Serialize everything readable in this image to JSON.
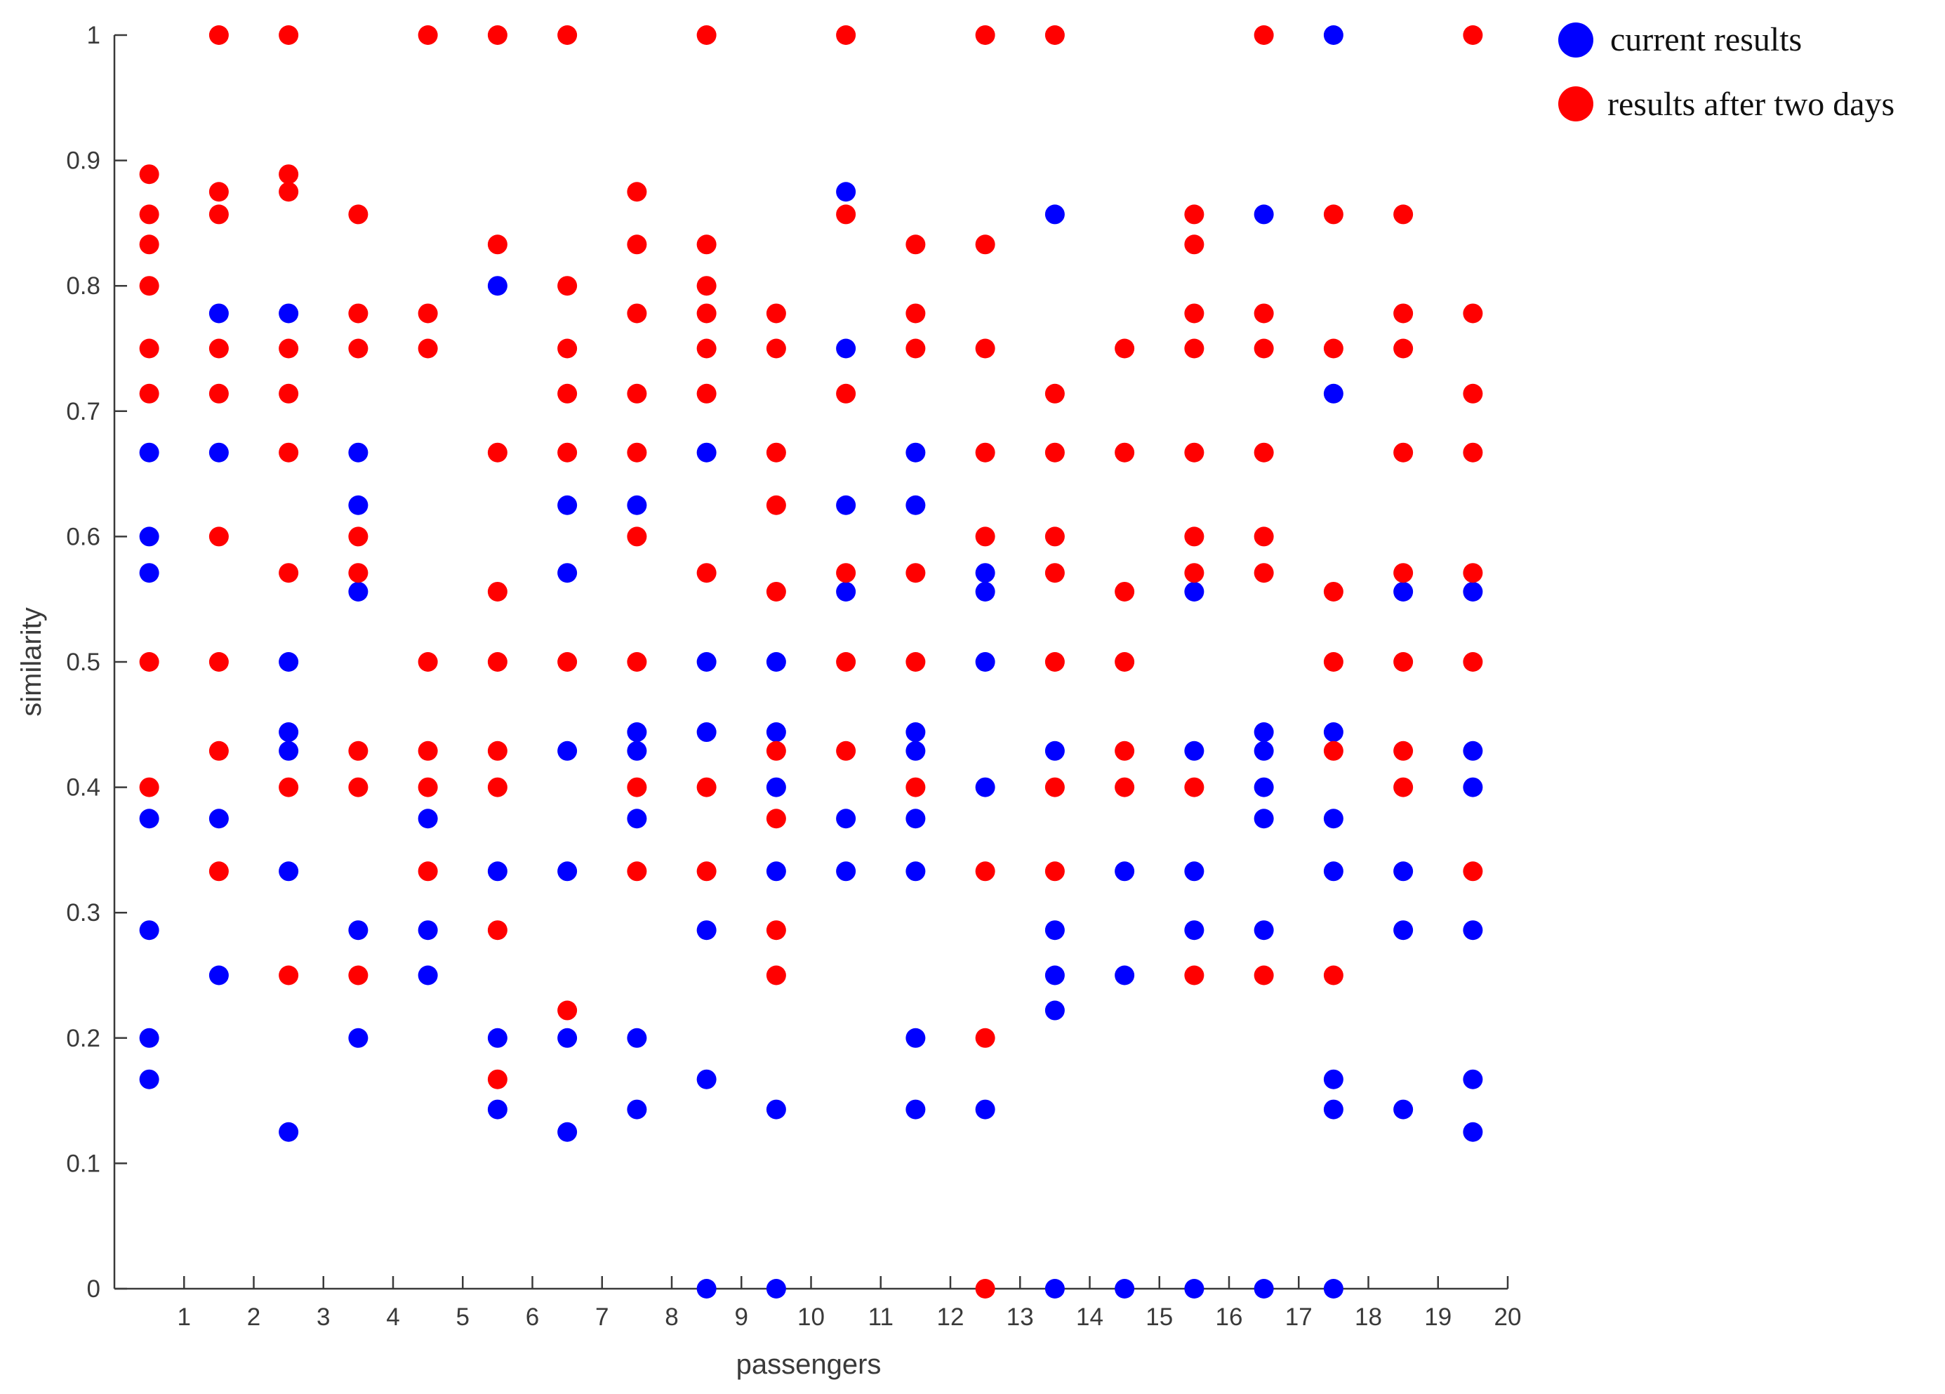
{
  "chart_data": {
    "type": "scatter",
    "xlabel": "passengers",
    "ylabel": "similarity",
    "xlim": [
      0,
      20
    ],
    "ylim": [
      0,
      1
    ],
    "xticks": [
      "1",
      "2",
      "3",
      "4",
      "5",
      "6",
      "7",
      "8",
      "9",
      "10",
      "11",
      "12",
      "13",
      "14",
      "15",
      "16",
      "17",
      "18",
      "19",
      "20"
    ],
    "yticks": [
      "0",
      "0.1",
      "0.2",
      "0.3",
      "0.4",
      "0.5",
      "0.6",
      "0.7",
      "0.8",
      "0.9",
      "1"
    ],
    "grid": false,
    "legend_position": "top-right (outside)",
    "series": [
      {
        "name": "current results",
        "color": "#0000ff",
        "points": [
          [
            0.5,
            0.667
          ],
          [
            0.5,
            0.6
          ],
          [
            0.5,
            0.571
          ],
          [
            0.5,
            0.375
          ],
          [
            0.5,
            0.286
          ],
          [
            0.5,
            0.2
          ],
          [
            0.5,
            0.167
          ],
          [
            1.5,
            0.778
          ],
          [
            1.5,
            0.667
          ],
          [
            1.5,
            0.375
          ],
          [
            1.5,
            0.25
          ],
          [
            2.5,
            0.778
          ],
          [
            2.5,
            0.5
          ],
          [
            2.5,
            0.444
          ],
          [
            2.5,
            0.429
          ],
          [
            2.5,
            0.333
          ],
          [
            2.5,
            0.125
          ],
          [
            3.5,
            0.667
          ],
          [
            3.5,
            0.625
          ],
          [
            3.5,
            0.556
          ],
          [
            3.5,
            0.286
          ],
          [
            3.5,
            0.2
          ],
          [
            4.5,
            0.375
          ],
          [
            4.5,
            0.286
          ],
          [
            4.5,
            0.25
          ],
          [
            5.5,
            0.8
          ],
          [
            5.5,
            0.333
          ],
          [
            5.5,
            0.2
          ],
          [
            5.5,
            0.143
          ],
          [
            6.5,
            0.625
          ],
          [
            6.5,
            0.571
          ],
          [
            6.5,
            0.429
          ],
          [
            6.5,
            0.333
          ],
          [
            6.5,
            0.2
          ],
          [
            6.5,
            0.125
          ],
          [
            7.5,
            0.625
          ],
          [
            7.5,
            0.444
          ],
          [
            7.5,
            0.429
          ],
          [
            7.5,
            0.375
          ],
          [
            7.5,
            0.2
          ],
          [
            7.5,
            0.143
          ],
          [
            8.5,
            0.667
          ],
          [
            8.5,
            0.5
          ],
          [
            8.5,
            0.444
          ],
          [
            8.5,
            0.286
          ],
          [
            8.5,
            0.167
          ],
          [
            8.5,
            0.0
          ],
          [
            9.5,
            0.5
          ],
          [
            9.5,
            0.444
          ],
          [
            9.5,
            0.4
          ],
          [
            9.5,
            0.333
          ],
          [
            9.5,
            0.143
          ],
          [
            9.5,
            0.0
          ],
          [
            10.5,
            0.875
          ],
          [
            10.5,
            0.75
          ],
          [
            10.5,
            0.625
          ],
          [
            10.5,
            0.556
          ],
          [
            10.5,
            0.375
          ],
          [
            10.5,
            0.333
          ],
          [
            11.5,
            0.667
          ],
          [
            11.5,
            0.625
          ],
          [
            11.5,
            0.444
          ],
          [
            11.5,
            0.429
          ],
          [
            11.5,
            0.375
          ],
          [
            11.5,
            0.333
          ],
          [
            11.5,
            0.2
          ],
          [
            11.5,
            0.143
          ],
          [
            12.5,
            0.571
          ],
          [
            12.5,
            0.556
          ],
          [
            12.5,
            0.5
          ],
          [
            12.5,
            0.4
          ],
          [
            12.5,
            0.143
          ],
          [
            13.5,
            0.857
          ],
          [
            13.5,
            0.429
          ],
          [
            13.5,
            0.286
          ],
          [
            13.5,
            0.25
          ],
          [
            13.5,
            0.222
          ],
          [
            13.5,
            0.0
          ],
          [
            14.5,
            0.333
          ],
          [
            14.5,
            0.25
          ],
          [
            14.5,
            0.0
          ],
          [
            15.5,
            0.556
          ],
          [
            15.5,
            0.429
          ],
          [
            15.5,
            0.333
          ],
          [
            15.5,
            0.286
          ],
          [
            15.5,
            0.0
          ],
          [
            16.5,
            0.857
          ],
          [
            16.5,
            0.444
          ],
          [
            16.5,
            0.429
          ],
          [
            16.5,
            0.4
          ],
          [
            16.5,
            0.375
          ],
          [
            16.5,
            0.286
          ],
          [
            16.5,
            0.0
          ],
          [
            17.5,
            1.0
          ],
          [
            17.5,
            0.714
          ],
          [
            17.5,
            0.444
          ],
          [
            17.5,
            0.375
          ],
          [
            17.5,
            0.333
          ],
          [
            17.5,
            0.167
          ],
          [
            17.5,
            0.143
          ],
          [
            17.5,
            0.0
          ],
          [
            18.5,
            0.556
          ],
          [
            18.5,
            0.333
          ],
          [
            18.5,
            0.286
          ],
          [
            18.5,
            0.143
          ],
          [
            19.5,
            0.556
          ],
          [
            19.5,
            0.429
          ],
          [
            19.5,
            0.4
          ],
          [
            19.5,
            0.286
          ],
          [
            19.5,
            0.167
          ],
          [
            19.5,
            0.125
          ]
        ]
      },
      {
        "name": "results after two days",
        "color": "#ff0000",
        "points": [
          [
            0.5,
            0.889
          ],
          [
            0.5,
            0.857
          ],
          [
            0.5,
            0.833
          ],
          [
            0.5,
            0.8
          ],
          [
            0.5,
            0.75
          ],
          [
            0.5,
            0.714
          ],
          [
            0.5,
            0.5
          ],
          [
            0.5,
            0.4
          ],
          [
            1.5,
            1.0
          ],
          [
            1.5,
            0.875
          ],
          [
            1.5,
            0.857
          ],
          [
            1.5,
            0.75
          ],
          [
            1.5,
            0.714
          ],
          [
            1.5,
            0.6
          ],
          [
            1.5,
            0.5
          ],
          [
            1.5,
            0.429
          ],
          [
            1.5,
            0.333
          ],
          [
            2.5,
            1.0
          ],
          [
            2.5,
            0.889
          ],
          [
            2.5,
            0.875
          ],
          [
            2.5,
            0.75
          ],
          [
            2.5,
            0.714
          ],
          [
            2.5,
            0.667
          ],
          [
            2.5,
            0.571
          ],
          [
            2.5,
            0.4
          ],
          [
            2.5,
            0.25
          ],
          [
            3.5,
            0.857
          ],
          [
            3.5,
            0.778
          ],
          [
            3.5,
            0.75
          ],
          [
            3.5,
            0.6
          ],
          [
            3.5,
            0.571
          ],
          [
            3.5,
            0.429
          ],
          [
            3.5,
            0.4
          ],
          [
            3.5,
            0.25
          ],
          [
            4.5,
            1.0
          ],
          [
            4.5,
            0.778
          ],
          [
            4.5,
            0.75
          ],
          [
            4.5,
            0.5
          ],
          [
            4.5,
            0.429
          ],
          [
            4.5,
            0.4
          ],
          [
            4.5,
            0.333
          ],
          [
            5.5,
            1.0
          ],
          [
            5.5,
            0.833
          ],
          [
            5.5,
            0.667
          ],
          [
            5.5,
            0.556
          ],
          [
            5.5,
            0.5
          ],
          [
            5.5,
            0.429
          ],
          [
            5.5,
            0.4
          ],
          [
            5.5,
            0.286
          ],
          [
            5.5,
            0.167
          ],
          [
            6.5,
            1.0
          ],
          [
            6.5,
            0.8
          ],
          [
            6.5,
            0.75
          ],
          [
            6.5,
            0.714
          ],
          [
            6.5,
            0.667
          ],
          [
            6.5,
            0.5
          ],
          [
            6.5,
            0.222
          ],
          [
            7.5,
            0.875
          ],
          [
            7.5,
            0.833
          ],
          [
            7.5,
            0.778
          ],
          [
            7.5,
            0.714
          ],
          [
            7.5,
            0.667
          ],
          [
            7.5,
            0.6
          ],
          [
            7.5,
            0.5
          ],
          [
            7.5,
            0.4
          ],
          [
            7.5,
            0.333
          ],
          [
            8.5,
            1.0
          ],
          [
            8.5,
            0.833
          ],
          [
            8.5,
            0.8
          ],
          [
            8.5,
            0.778
          ],
          [
            8.5,
            0.75
          ],
          [
            8.5,
            0.714
          ],
          [
            8.5,
            0.571
          ],
          [
            8.5,
            0.4
          ],
          [
            8.5,
            0.333
          ],
          [
            9.5,
            0.778
          ],
          [
            9.5,
            0.75
          ],
          [
            9.5,
            0.667
          ],
          [
            9.5,
            0.625
          ],
          [
            9.5,
            0.556
          ],
          [
            9.5,
            0.429
          ],
          [
            9.5,
            0.375
          ],
          [
            9.5,
            0.286
          ],
          [
            9.5,
            0.25
          ],
          [
            10.5,
            1.0
          ],
          [
            10.5,
            0.857
          ],
          [
            10.5,
            0.714
          ],
          [
            10.5,
            0.571
          ],
          [
            10.5,
            0.5
          ],
          [
            10.5,
            0.429
          ],
          [
            11.5,
            0.833
          ],
          [
            11.5,
            0.778
          ],
          [
            11.5,
            0.75
          ],
          [
            11.5,
            0.571
          ],
          [
            11.5,
            0.5
          ],
          [
            11.5,
            0.4
          ],
          [
            12.5,
            1.0
          ],
          [
            12.5,
            0.833
          ],
          [
            12.5,
            0.75
          ],
          [
            12.5,
            0.667
          ],
          [
            12.5,
            0.6
          ],
          [
            12.5,
            0.333
          ],
          [
            12.5,
            0.2
          ],
          [
            12.5,
            0.0
          ],
          [
            13.5,
            1.0
          ],
          [
            13.5,
            0.714
          ],
          [
            13.5,
            0.667
          ],
          [
            13.5,
            0.6
          ],
          [
            13.5,
            0.571
          ],
          [
            13.5,
            0.5
          ],
          [
            13.5,
            0.4
          ],
          [
            13.5,
            0.333
          ],
          [
            14.5,
            0.75
          ],
          [
            14.5,
            0.667
          ],
          [
            14.5,
            0.556
          ],
          [
            14.5,
            0.5
          ],
          [
            14.5,
            0.429
          ],
          [
            14.5,
            0.4
          ],
          [
            15.5,
            0.857
          ],
          [
            15.5,
            0.833
          ],
          [
            15.5,
            0.778
          ],
          [
            15.5,
            0.75
          ],
          [
            15.5,
            0.667
          ],
          [
            15.5,
            0.6
          ],
          [
            15.5,
            0.571
          ],
          [
            15.5,
            0.4
          ],
          [
            15.5,
            0.25
          ],
          [
            16.5,
            1.0
          ],
          [
            16.5,
            0.778
          ],
          [
            16.5,
            0.75
          ],
          [
            16.5,
            0.667
          ],
          [
            16.5,
            0.6
          ],
          [
            16.5,
            0.571
          ],
          [
            16.5,
            0.25
          ],
          [
            17.5,
            0.857
          ],
          [
            17.5,
            0.75
          ],
          [
            17.5,
            0.556
          ],
          [
            17.5,
            0.5
          ],
          [
            17.5,
            0.429
          ],
          [
            17.5,
            0.25
          ],
          [
            18.5,
            0.857
          ],
          [
            18.5,
            0.778
          ],
          [
            18.5,
            0.75
          ],
          [
            18.5,
            0.667
          ],
          [
            18.5,
            0.571
          ],
          [
            18.5,
            0.5
          ],
          [
            18.5,
            0.429
          ],
          [
            18.5,
            0.4
          ],
          [
            19.5,
            1.0
          ],
          [
            19.5,
            0.778
          ],
          [
            19.5,
            0.714
          ],
          [
            19.5,
            0.667
          ],
          [
            19.5,
            0.571
          ],
          [
            19.5,
            0.5
          ],
          [
            19.5,
            0.333
          ]
        ]
      }
    ]
  }
}
